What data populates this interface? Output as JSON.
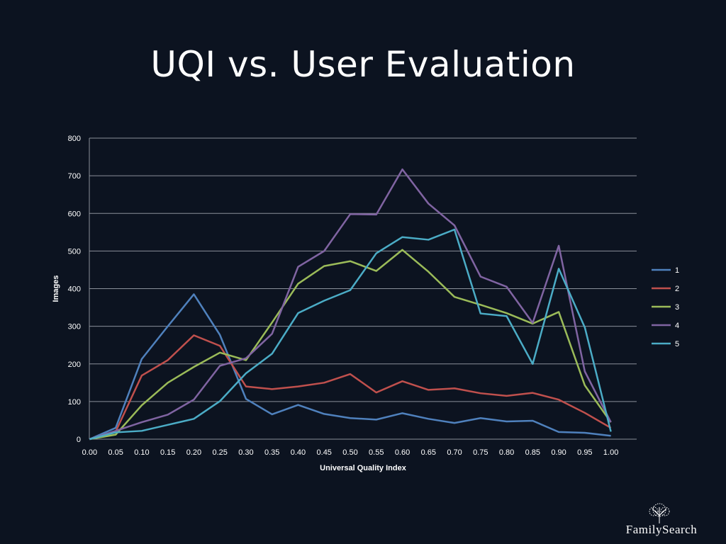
{
  "slide": {
    "title": "UQI vs. User Evaluation",
    "logo_text": "FamilySearch"
  },
  "colors": {
    "background": "#0c1320",
    "gridline": "#8a8f99"
  },
  "chart_data": {
    "type": "line",
    "title": "",
    "xlabel": "Universal Quality Index",
    "ylabel": "Images",
    "ylim": [
      0,
      800
    ],
    "yticks": [
      0,
      100,
      200,
      300,
      400,
      500,
      600,
      700,
      800
    ],
    "grid": true,
    "legend_position": "right",
    "categories": [
      "0.00",
      "0.05",
      "0.10",
      "0.15",
      "0.20",
      "0.25",
      "0.30",
      "0.35",
      "0.40",
      "0.45",
      "0.50",
      "0.55",
      "0.60",
      "0.65",
      "0.70",
      "0.75",
      "0.80",
      "0.85",
      "0.90",
      "0.95",
      "1.00"
    ],
    "series": [
      {
        "name": "1",
        "color": "#4f81bd",
        "values": [
          0,
          30,
          213,
          300,
          385,
          277,
          107,
          66,
          91,
          67,
          56,
          52,
          69,
          54,
          43,
          56,
          47,
          49,
          19,
          17,
          9
        ]
      },
      {
        "name": "2",
        "color": "#c0504d",
        "values": [
          0,
          20,
          169,
          210,
          276,
          248,
          140,
          133,
          140,
          150,
          173,
          124,
          154,
          131,
          135,
          122,
          115,
          123,
          105,
          70,
          30
        ]
      },
      {
        "name": "3",
        "color": "#9bbb59",
        "values": [
          0,
          12,
          90,
          150,
          192,
          230,
          210,
          310,
          413,
          460,
          473,
          447,
          503,
          445,
          378,
          357,
          335,
          307,
          338,
          143,
          45
        ]
      },
      {
        "name": "4",
        "color": "#8064a2",
        "values": [
          0,
          22,
          45,
          65,
          105,
          195,
          215,
          280,
          458,
          500,
          598,
          597,
          717,
          626,
          568,
          432,
          405,
          309,
          514,
          180,
          45
        ]
      },
      {
        "name": "5",
        "color": "#4bacc6",
        "values": [
          0,
          18,
          22,
          38,
          54,
          101,
          175,
          227,
          335,
          368,
          396,
          494,
          537,
          530,
          557,
          334,
          327,
          200,
          453,
          297,
          20
        ]
      }
    ]
  }
}
